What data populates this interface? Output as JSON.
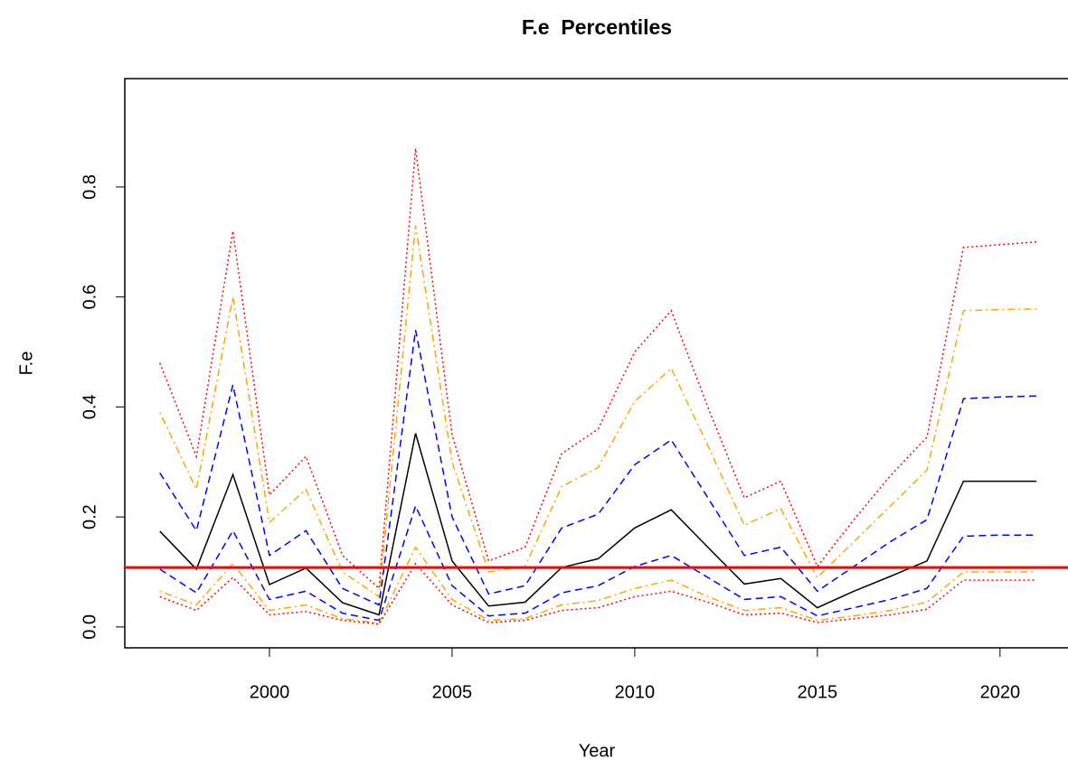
{
  "chart_data": {
    "type": "line",
    "title": "F.e  Percentiles",
    "x_label": "Year",
    "y_label": "F.e",
    "x": [
      1997,
      1998,
      1999,
      2000,
      2001,
      2002,
      2003,
      2004,
      2005,
      2006,
      2007,
      2008,
      2009,
      2010,
      2011,
      2012,
      2013,
      2014,
      2015,
      2016,
      2017,
      2018,
      2019,
      2020,
      2021
    ],
    "series": [
      {
        "color": "#ff0000",
        "dash": "dotted",
        "values": [
          0.48,
          0.31,
          0.72,
          0.24,
          0.31,
          0.13,
          0.07,
          0.87,
          0.35,
          0.12,
          0.145,
          0.315,
          0.36,
          0.5,
          0.575,
          0.4,
          0.235,
          0.265,
          0.11,
          0.195,
          0.275,
          0.345,
          0.69,
          0.695,
          0.7
        ]
      },
      {
        "color": "#ffa500",
        "dash": "dotdash",
        "values": [
          0.39,
          0.25,
          0.6,
          0.19,
          0.25,
          0.1,
          0.055,
          0.73,
          0.3,
          0.1,
          0.11,
          0.255,
          0.29,
          0.41,
          0.47,
          0.33,
          0.185,
          0.215,
          0.09,
          0.155,
          0.22,
          0.285,
          0.575,
          0.577,
          0.578
        ]
      },
      {
        "color": "#0000ff",
        "dash": "dashed",
        "values": [
          0.28,
          0.175,
          0.44,
          0.13,
          0.175,
          0.07,
          0.04,
          0.54,
          0.2,
          0.06,
          0.075,
          0.18,
          0.205,
          0.295,
          0.34,
          0.235,
          0.13,
          0.145,
          0.065,
          0.11,
          0.155,
          0.195,
          0.415,
          0.418,
          0.42
        ]
      },
      {
        "color": "#000000",
        "dash": "solid",
        "values": [
          0.174,
          0.105,
          0.277,
          0.077,
          0.107,
          0.044,
          0.022,
          0.352,
          0.12,
          0.038,
          0.045,
          0.108,
          0.124,
          0.18,
          0.213,
          0.145,
          0.078,
          0.088,
          0.035,
          0.065,
          0.092,
          0.12,
          0.265,
          0.265,
          0.265
        ]
      },
      {
        "color": "#0000ff",
        "dash": "dashed",
        "values": [
          0.105,
          0.062,
          0.175,
          0.05,
          0.065,
          0.025,
          0.012,
          0.22,
          0.075,
          0.02,
          0.025,
          0.062,
          0.075,
          0.11,
          0.13,
          0.09,
          0.05,
          0.055,
          0.02,
          0.035,
          0.05,
          0.07,
          0.165,
          0.167,
          0.167
        ]
      },
      {
        "color": "#ffa500",
        "dash": "dotdash",
        "values": [
          0.065,
          0.04,
          0.115,
          0.03,
          0.04,
          0.015,
          0.007,
          0.145,
          0.05,
          0.012,
          0.015,
          0.04,
          0.048,
          0.07,
          0.085,
          0.055,
          0.03,
          0.035,
          0.012,
          0.02,
          0.03,
          0.045,
          0.1,
          0.1,
          0.1
        ]
      },
      {
        "color": "#ff0000",
        "dash": "dotted",
        "values": [
          0.055,
          0.03,
          0.09,
          0.022,
          0.028,
          0.012,
          0.005,
          0.115,
          0.04,
          0.008,
          0.012,
          0.03,
          0.035,
          0.055,
          0.065,
          0.045,
          0.022,
          0.025,
          0.008,
          0.015,
          0.022,
          0.032,
          0.085,
          0.085,
          0.085
        ]
      }
    ],
    "hline": {
      "value": 0.108,
      "color": "#ff0000"
    },
    "xlim": [
      1996.04,
      2021.96
    ],
    "ylim": [
      -0.038,
      0.997
    ],
    "xticks": [
      2000,
      2005,
      2010,
      2015,
      2020
    ],
    "yticks": [
      {
        "value": 0,
        "label": "0.0"
      },
      0.2,
      0.4,
      0.6,
      0.8
    ]
  }
}
